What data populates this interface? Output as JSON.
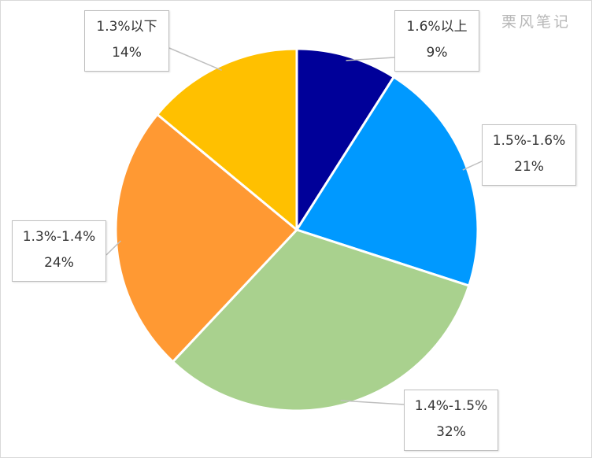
{
  "watermark": "栗风笔记",
  "chart_data": {
    "type": "pie",
    "start_angle_deg": 0,
    "direction": "clockwise",
    "slices": [
      {
        "label": "1.6%以上",
        "percent_label": "9%",
        "value": 9,
        "color": "#000099"
      },
      {
        "label": "1.5%-1.6%",
        "percent_label": "21%",
        "value": 21,
        "color": "#0099FF"
      },
      {
        "label": "1.4%-1.5%",
        "percent_label": "32%",
        "value": 32,
        "color": "#A9D18E"
      },
      {
        "label": "1.3%-1.4%",
        "percent_label": "24%",
        "value": 24,
        "color": "#FF9933"
      },
      {
        "label": "1.3%以下",
        "percent_label": "14%",
        "value": 14,
        "color": "#FFC000"
      }
    ]
  }
}
